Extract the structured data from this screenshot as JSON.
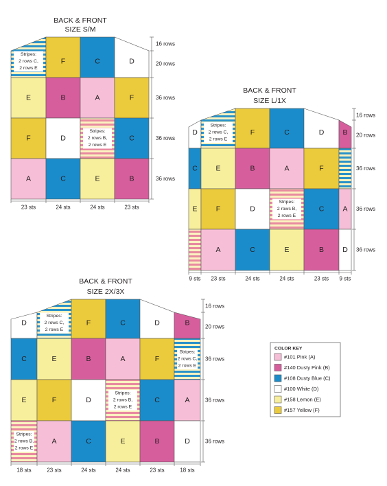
{
  "colors": {
    "A": "#f7bfd7",
    "B": "#d75e9d",
    "C": "#1b8ccb",
    "D": "#ffffff",
    "E": "#f8ef9c",
    "F": "#ebca3b",
    "stripe_B": "#e88aa0",
    "stripe_C": "#2a92c9",
    "stripe_E": "#fbf2c0",
    "outline": "#555555",
    "text": "#231f20"
  },
  "stripes": {
    "C": [
      "Stripes:",
      "2 rows C,",
      "2 rows E"
    ],
    "B": [
      "Stripes:",
      "2 rows B,",
      "2 rows E"
    ]
  },
  "diagrams": [
    {
      "id": "sm",
      "title": [
        "BACK & FRONT",
        "SIZE S/M"
      ],
      "col_labels": [
        "23 sts",
        "24 sts",
        "24 sts",
        "23 sts"
      ],
      "row_labels": [
        "16 rows",
        "20 rows",
        "36 rows",
        "36 rows",
        "36 rows"
      ],
      "rows": [
        [
          "SC",
          "F",
          "C",
          "D"
        ],
        [
          "E",
          "B",
          "A",
          "F"
        ],
        [
          "F",
          "D",
          "SB",
          "C"
        ],
        [
          "A",
          "C",
          "E",
          "B"
        ]
      ]
    },
    {
      "id": "l1x",
      "title": [
        "BACK & FRONT",
        "SIZE L/1X"
      ],
      "col_labels": [
        "9 sts",
        "23 sts",
        "24 sts",
        "24 sts",
        "23 sts",
        "9 sts"
      ],
      "row_labels": [
        "16 rows",
        "20 rows",
        "36 rows",
        "36 rows",
        "36 rows"
      ],
      "rows": [
        [
          "D",
          "SC",
          "F",
          "C",
          "D",
          "B"
        ],
        [
          "C",
          "E",
          "B",
          "A",
          "F",
          "SC"
        ],
        [
          "E",
          "F",
          "D",
          "SB",
          "C",
          "A"
        ],
        [
          "SB",
          "A",
          "C",
          "E",
          "B",
          "D"
        ]
      ]
    },
    {
      "id": "2x3x",
      "title": [
        "BACK & FRONT",
        "SIZE 2X/3X"
      ],
      "col_labels": [
        "18 sts",
        "23 sts",
        "24 sts",
        "24 sts",
        "23 sts",
        "18 sts"
      ],
      "row_labels": [
        "16 rows",
        "20 rows",
        "36 rows",
        "36 rows",
        "36 rows"
      ],
      "rows": [
        [
          "D",
          "SC",
          "F",
          "C",
          "D",
          "B"
        ],
        [
          "C",
          "E",
          "B",
          "A",
          "F",
          "SC"
        ],
        [
          "E",
          "F",
          "D",
          "SB",
          "C",
          "A"
        ],
        [
          "SB",
          "A",
          "C",
          "E",
          "B",
          "D"
        ]
      ]
    }
  ],
  "key": {
    "title": "COLOR KEY",
    "items": [
      {
        "code": "A",
        "label": "#101 Pink (A)"
      },
      {
        "code": "B",
        "label": "#140 Dusty Pink (B)"
      },
      {
        "code": "C",
        "label": "#108 Dusty Blue (C)"
      },
      {
        "code": "D",
        "label": "#100 White (D)"
      },
      {
        "code": "E",
        "label": "#158 Lemon (E)"
      },
      {
        "code": "F",
        "label": "#157 Yellow (F)"
      }
    ]
  }
}
